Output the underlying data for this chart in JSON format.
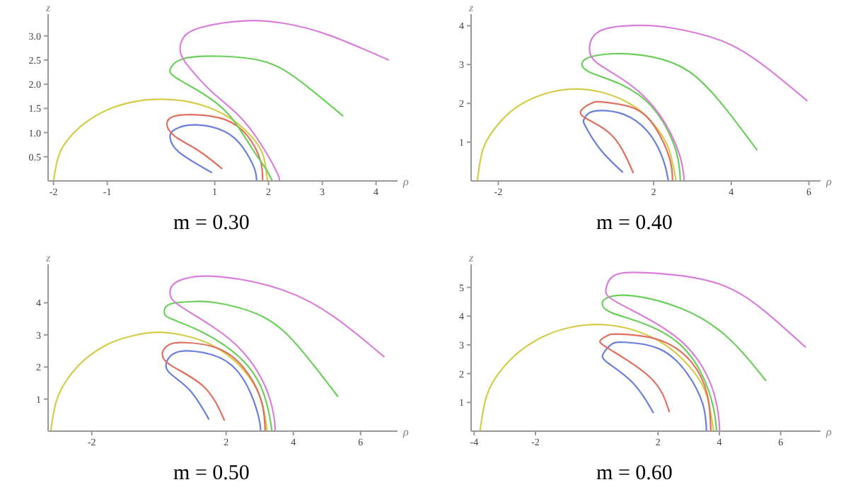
{
  "chart_data": [
    {
      "type": "line",
      "title": "m = 0.30",
      "xlabel": "ρ",
      "ylabel": "z",
      "xlim": [
        -2.1,
        4.4
      ],
      "ylim": [
        0,
        3.45
      ],
      "xticks": [
        -2,
        -1,
        1,
        2,
        3,
        4
      ],
      "yticks": [
        {
          "value": 0.5,
          "label": "0.5"
        },
        {
          "value": 1,
          "label": "1.0"
        },
        {
          "value": 1.5,
          "label": "1.5"
        },
        {
          "value": 2,
          "label": "2.0"
        },
        {
          "value": 2.5,
          "label": "2.5"
        },
        {
          "value": 3,
          "label": "3.0"
        }
      ],
      "grid": false,
      "legend": false,
      "marker": "none",
      "line_style": "solid",
      "series": [
        {
          "color": "#d4cc4a",
          "x": [
            -2,
            -1.9,
            -1.7,
            -1.4,
            -1,
            -0.5,
            0,
            0.5,
            1,
            1.4,
            1.7,
            1.9,
            1.98
          ],
          "values": [
            0,
            0.53,
            0.9,
            1.21,
            1.47,
            1.64,
            1.69,
            1.64,
            1.47,
            1.21,
            0.9,
            0.53,
            0
          ]
        },
        {
          "color": "#6a7fdb",
          "x": [
            0.95,
            0.34,
            0.17,
            0.25,
            0.64,
            1.19,
            1.53,
            1.74,
            1.78
          ],
          "values": [
            0.17,
            0.59,
            0.89,
            1.06,
            1.16,
            1.02,
            0.68,
            0.25,
            0
          ]
        },
        {
          "color": "#e07060",
          "x": [
            1.14,
            0.68,
            0.25,
            0.11,
            0.25,
            0.64,
            1.19,
            1.61,
            1.85,
            1.89
          ],
          "values": [
            0.25,
            0.64,
            0.93,
            1.19,
            1.34,
            1.37,
            1.27,
            0.93,
            0.42,
            0
          ]
        },
        {
          "color": "#6ccf5c",
          "x": [
            3.39,
            2.63,
            1.95,
            1.1,
            0.42,
            0.17,
            0.3,
            0.76,
            1.27,
            1.69,
            1.95,
            2.07
          ],
          "values": [
            1.34,
            2.03,
            2.46,
            2.58,
            2.53,
            2.31,
            2.12,
            1.82,
            1.36,
            0.68,
            0.25,
            0
          ]
        },
        {
          "color": "#d97fd9",
          "x": [
            4.24,
            3.14,
            2.29,
            1.53,
            0.76,
            0.42,
            0.36,
            0.51,
            0.93,
            1.44,
            1.86,
            2.16,
            2.2
          ],
          "values": [
            2.5,
            3.01,
            3.26,
            3.31,
            3.18,
            2.97,
            2.67,
            2.37,
            1.86,
            1.36,
            0.76,
            0.17,
            0
          ]
        }
      ]
    },
    {
      "type": "line",
      "title": "m = 0.40",
      "xlabel": "ρ",
      "ylabel": "z",
      "xlim": [
        -2.7,
        6.3
      ],
      "ylim": [
        0,
        4.3
      ],
      "xticks": [
        -2,
        2,
        4,
        6
      ],
      "yticks": [
        1,
        2,
        3,
        4
      ],
      "grid": false,
      "legend": false,
      "marker": "none",
      "line_style": "solid",
      "series": [
        {
          "color": "#d4cc4a",
          "x": [
            -2.54,
            -2.4,
            -2.1,
            -1.7,
            -1.2,
            -0.6,
            0,
            0.6,
            1.2,
            1.7,
            2.1,
            2.4,
            2.58
          ],
          "values": [
            0,
            0.8,
            1.34,
            1.77,
            2.09,
            2.3,
            2.37,
            2.3,
            2.09,
            1.77,
            1.34,
            0.8,
            0
          ]
        },
        {
          "color": "#6a7fdb",
          "x": [
            1.21,
            0.63,
            0.24,
            0.21,
            0.35,
            0.79,
            1.4,
            1.95,
            2.27,
            2.38
          ],
          "values": [
            0.22,
            0.81,
            1.42,
            1.59,
            1.76,
            1.81,
            1.64,
            1.14,
            0.48,
            0
          ]
        },
        {
          "color": "#e07060",
          "x": [
            1.48,
            0.96,
            0.3,
            0.13,
            0.41,
            0.74,
            1.51,
            2.05,
            2.41,
            2.49
          ],
          "values": [
            0.2,
            1.14,
            1.59,
            1.81,
            2.01,
            2.03,
            1.87,
            1.37,
            0.59,
            0
          ]
        },
        {
          "color": "#6ccf5c",
          "x": [
            4.67,
            3.81,
            2.93,
            1.95,
            0.96,
            0.3,
            0.16,
            0.41,
            1.18,
            1.95,
            2.49,
            2.66,
            2.69
          ],
          "values": [
            0.79,
            1.92,
            2.81,
            3.2,
            3.28,
            3.17,
            2.98,
            2.78,
            2.48,
            1.92,
            1.03,
            0.37,
            0
          ]
        },
        {
          "color": "#d97fd9",
          "x": [
            5.96,
            4.91,
            3.81,
            2.49,
            1.62,
            0.63,
            0.35,
            0.63,
            1.4,
            2.16,
            2.66,
            2.79
          ],
          "values": [
            2.06,
            2.92,
            3.59,
            3.94,
            4.01,
            3.87,
            3.37,
            2.98,
            2.48,
            1.7,
            0.7,
            0
          ]
        }
      ]
    },
    {
      "type": "line",
      "title": "m = 0.50",
      "xlabel": "ρ",
      "ylabel": "z",
      "xlim": [
        -3.3,
        7.1
      ],
      "ylim": [
        0,
        5.2
      ],
      "xticks": [
        -2,
        2,
        4,
        6
      ],
      "yticks": [
        1,
        2,
        3,
        4
      ],
      "grid": false,
      "legend": false,
      "marker": "none",
      "line_style": "solid",
      "series": [
        {
          "color": "#d4cc4a",
          "x": [
            -3.22,
            -3.05,
            -2.7,
            -2.2,
            -1.5,
            -0.8,
            0,
            0.8,
            1.5,
            2.2,
            2.7,
            3.05,
            3.22
          ],
          "values": [
            0,
            0.95,
            1.66,
            2.24,
            2.72,
            2.97,
            3.08,
            2.97,
            2.72,
            2.24,
            1.66,
            0.95,
            0
          ]
        },
        {
          "color": "#6a7fdb",
          "x": [
            1.49,
            0.92,
            0.33,
            0.22,
            0.46,
            1.05,
            1.97,
            2.63,
            2.96,
            3.03
          ],
          "values": [
            0.36,
            1.27,
            1.8,
            2.13,
            2.43,
            2.49,
            2.2,
            1.4,
            0.47,
            0
          ]
        },
        {
          "color": "#e07060",
          "x": [
            1.95,
            1.32,
            0.33,
            0.11,
            0.33,
            0.79,
            1.71,
            2.5,
            3.03,
            3.16
          ],
          "values": [
            0.33,
            1.4,
            2.07,
            2.47,
            2.71,
            2.76,
            2.6,
            2,
            1,
            0
          ]
        },
        {
          "color": "#6ccf5c",
          "x": [
            5.33,
            4.34,
            3.16,
            1.71,
            1.05,
            0.33,
            0.16,
            0.39,
            1.32,
            2.37,
            3.03,
            3.29,
            3.36
          ],
          "values": [
            1.07,
            2.4,
            3.53,
            4,
            4.04,
            3.96,
            3.69,
            3.49,
            3.07,
            2.33,
            1.4,
            0.47,
            0
          ]
        },
        {
          "color": "#d97fd9",
          "x": [
            6.71,
            5.26,
            3.68,
            1.84,
            0.79,
            0.39,
            0.33,
            0.59,
            1.58,
            2.5,
            3.16,
            3.42,
            3.46
          ],
          "values": [
            2.31,
            3.53,
            4.4,
            4.81,
            4.76,
            4.53,
            4.27,
            3.93,
            3.27,
            2.47,
            1.4,
            0.47,
            0
          ]
        }
      ]
    },
    {
      "type": "line",
      "title": "m = 0.60",
      "xlabel": "ρ",
      "ylabel": "z",
      "xlim": [
        -4.1,
        7.3
      ],
      "ylim": [
        0,
        5.8
      ],
      "xticks": [
        -4,
        -2,
        2,
        4,
        6
      ],
      "yticks": [
        1,
        2,
        3,
        4,
        5
      ],
      "grid": false,
      "legend": false,
      "marker": "none",
      "line_style": "solid",
      "series": [
        {
          "color": "#d4cc4a",
          "x": [
            -3.81,
            -3.6,
            -3.2,
            -2.6,
            -1.8,
            -0.9,
            0,
            0.9,
            1.8,
            2.6,
            3.2,
            3.6,
            3.81
          ],
          "values": [
            0,
            1.2,
            2.01,
            2.7,
            3.26,
            3.6,
            3.71,
            3.6,
            3.26,
            2.7,
            2.01,
            1.2,
            0
          ]
        },
        {
          "color": "#6a7fdb",
          "x": [
            1.85,
            1.15,
            0.33,
            0.22,
            0.48,
            0.93,
            2.04,
            2.94,
            3.46,
            3.58
          ],
          "values": [
            0.63,
            1.71,
            2.4,
            2.71,
            3.02,
            3.09,
            2.86,
            2.02,
            0.94,
            0
          ]
        },
        {
          "color": "#e07060",
          "x": [
            2.37,
            1.75,
            0.4,
            0.13,
            0.4,
            0.85,
            2.04,
            3.09,
            3.61,
            3.72
          ],
          "values": [
            0.66,
            1.86,
            2.86,
            3.17,
            3.35,
            3.37,
            3.17,
            2.4,
            1.25,
            0
          ]
        },
        {
          "color": "#6ccf5c",
          "x": [
            5.52,
            4.28,
            2.79,
            1.15,
            0.33,
            0.18,
            0.48,
            1.6,
            2.79,
            3.54,
            3.84,
            3.91
          ],
          "values": [
            1.75,
            3.25,
            4.25,
            4.71,
            4.63,
            4.4,
            4.12,
            3.71,
            2.94,
            1.71,
            0.63,
            0
          ]
        },
        {
          "color": "#d97fd9",
          "x": [
            6.82,
            5.48,
            3.84,
            1.6,
            0.55,
            0.3,
            0.55,
            1.75,
            2.94,
            3.69,
            3.96,
            4.01
          ],
          "values": [
            2.91,
            4.17,
            5.17,
            5.51,
            5.4,
            4.94,
            4.55,
            3.86,
            2.94,
            1.71,
            0.63,
            0
          ]
        }
      ]
    }
  ]
}
